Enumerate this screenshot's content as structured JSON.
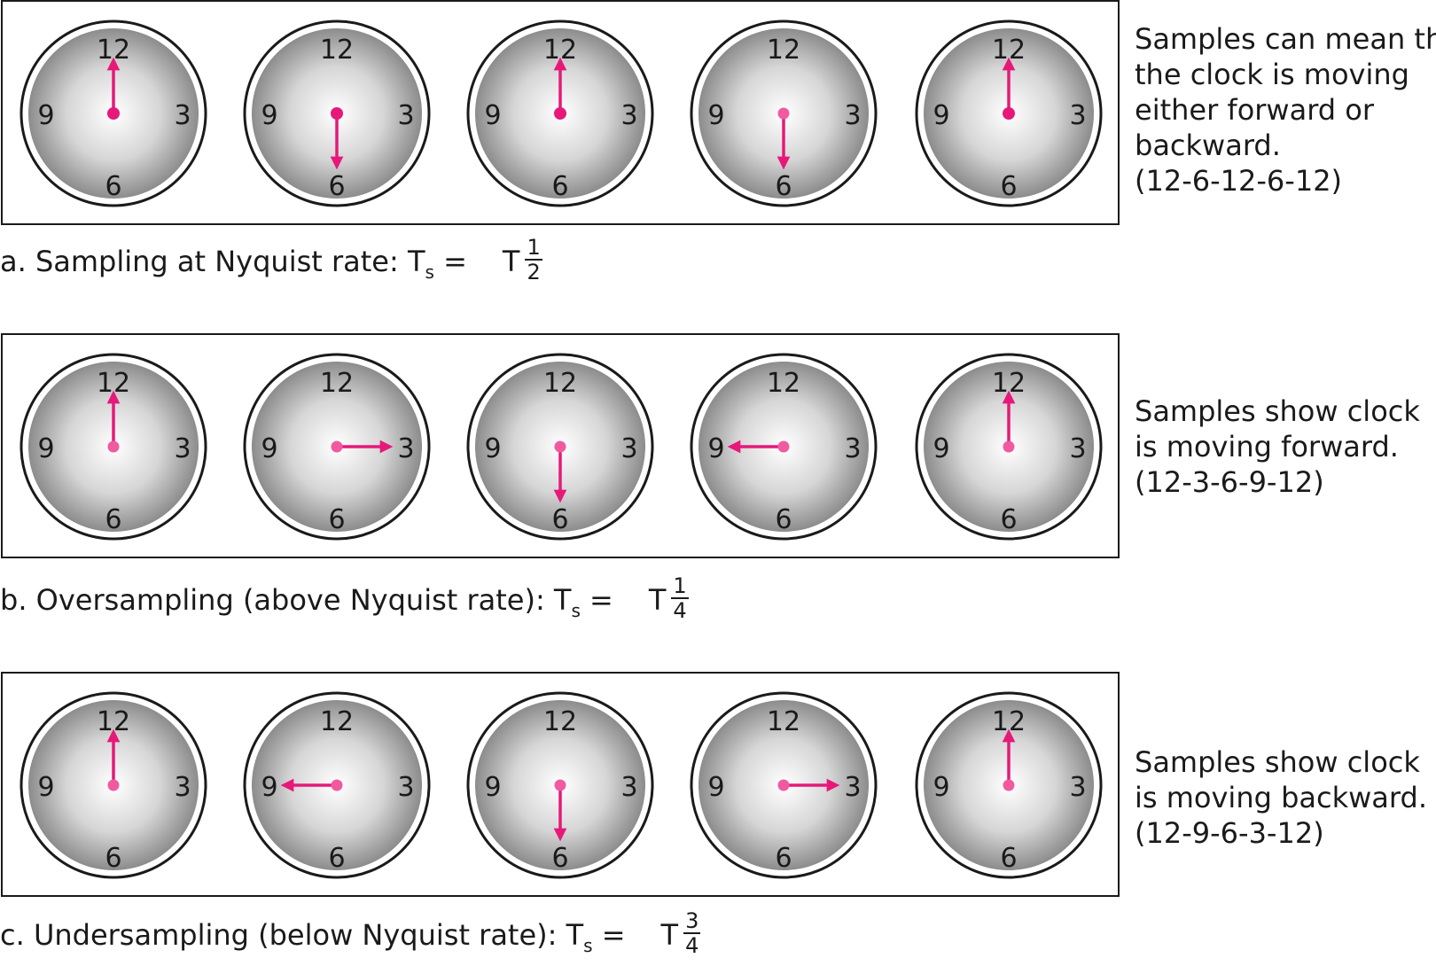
{
  "colors": {
    "hand": "#e6197a",
    "hub_strong": "#e6197a",
    "hub_light": "#f05aa0",
    "face_center": "#ffffff",
    "face_edge": "#8c8c8c",
    "outline": "#1a1a1a"
  },
  "clock_numbers": {
    "top": "12",
    "right": "3",
    "bottom": "6",
    "left": "9"
  },
  "panels": [
    {
      "id": "a",
      "hands": [
        "12",
        "6",
        "12",
        "6",
        "12"
      ],
      "hub_style": [
        "strong",
        "strong",
        "strong",
        "light",
        "strong"
      ],
      "description": [
        "Samples can mean that",
        "the clock is moving",
        "either forward or",
        "backward.",
        "(12-6-12-6-12)"
      ],
      "caption_text": "a. Sampling at Nyquist rate: T",
      "caption_sub": "s",
      "caption_eq": " =",
      "caption_T": "T",
      "frac_num": "1",
      "frac_den": "2"
    },
    {
      "id": "b",
      "hands": [
        "12",
        "3",
        "6",
        "9",
        "12"
      ],
      "hub_style": [
        "light",
        "light",
        "light",
        "light",
        "light"
      ],
      "description": [
        "Samples show clock",
        "is moving forward.",
        "(12-3-6-9-12)"
      ],
      "caption_text": "b. Oversampling (above Nyquist rate): T",
      "caption_sub": "s",
      "caption_eq": " =",
      "caption_T": "T",
      "frac_num": "1",
      "frac_den": "4"
    },
    {
      "id": "c",
      "hands": [
        "12",
        "9",
        "6",
        "3",
        "12"
      ],
      "hub_style": [
        "light",
        "light",
        "light",
        "light",
        "light"
      ],
      "description": [
        "Samples show clock",
        "is moving backward.",
        "(12-9-6-3-12)"
      ],
      "caption_text": "c. Undersampling (below Nyquist rate): T",
      "caption_sub": "s",
      "caption_eq": " =",
      "caption_T": "T",
      "frac_num": "3",
      "frac_den": "4"
    }
  ]
}
